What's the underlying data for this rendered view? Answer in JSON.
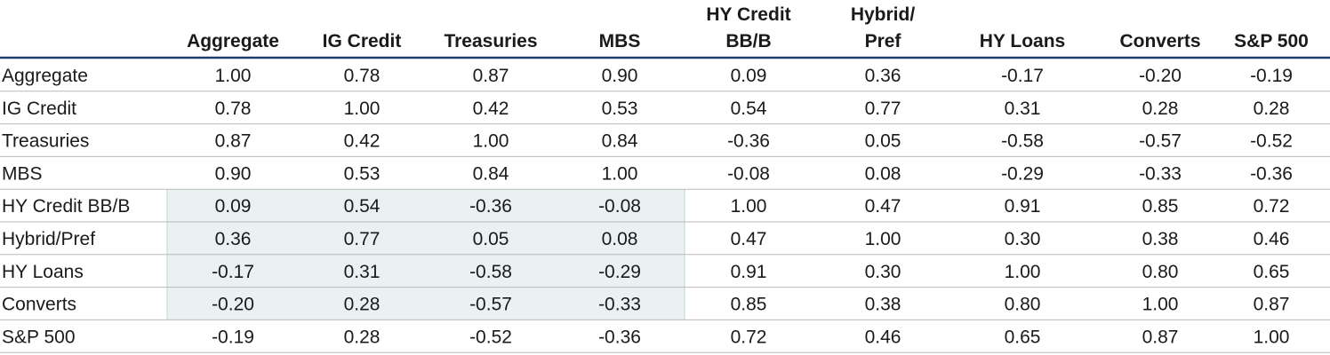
{
  "chart_data": {
    "type": "table",
    "columns": [
      [
        "Aggregate"
      ],
      [
        "IG Credit"
      ],
      [
        "Treasuries"
      ],
      [
        "MBS"
      ],
      [
        "HY Credit",
        "BB/B"
      ],
      [
        "Hybrid/",
        "Pref"
      ],
      [
        "HY Loans"
      ],
      [
        "Converts"
      ],
      [
        "S&P 500"
      ]
    ],
    "rows": [
      "Aggregate",
      "IG Credit",
      "Treasuries",
      "MBS",
      "HY Credit BB/B",
      "Hybrid/Pref",
      "HY Loans",
      "Converts",
      "S&P 500"
    ],
    "values": [
      [
        "1.00",
        "0.78",
        "0.87",
        "0.90",
        "0.09",
        "0.36",
        "-0.17",
        "-0.20",
        "-0.19"
      ],
      [
        "0.78",
        "1.00",
        "0.42",
        "0.53",
        "0.54",
        "0.77",
        "0.31",
        "0.28",
        "0.28"
      ],
      [
        "0.87",
        "0.42",
        "1.00",
        "0.84",
        "-0.36",
        "0.05",
        "-0.58",
        "-0.57",
        "-0.52"
      ],
      [
        "0.90",
        "0.53",
        "0.84",
        "1.00",
        "-0.08",
        "0.08",
        "-0.29",
        "-0.33",
        "-0.36"
      ],
      [
        "0.09",
        "0.54",
        "-0.36",
        "-0.08",
        "1.00",
        "0.47",
        "0.91",
        "0.85",
        "0.72"
      ],
      [
        "0.36",
        "0.77",
        "0.05",
        "0.08",
        "0.47",
        "1.00",
        "0.30",
        "0.38",
        "0.46"
      ],
      [
        "-0.17",
        "0.31",
        "-0.58",
        "-0.29",
        "0.91",
        "0.30",
        "1.00",
        "0.80",
        "0.65"
      ],
      [
        "-0.20",
        "0.28",
        "-0.57",
        "-0.33",
        "0.85",
        "0.38",
        "0.80",
        "1.00",
        "0.87"
      ],
      [
        "-0.19",
        "0.28",
        "-0.52",
        "-0.36",
        "0.72",
        "0.46",
        "0.65",
        "0.87",
        "1.00"
      ]
    ],
    "highlight": {
      "rows": [
        4,
        7
      ],
      "cols": [
        0,
        3
      ]
    },
    "colors": {
      "header_rule": "#1b3c6d",
      "row_rule": "#b9b9b9",
      "highlight_fill": "#eaf1f3",
      "highlight_border": "#d5e0e4",
      "text": "#1a1a1a"
    }
  }
}
